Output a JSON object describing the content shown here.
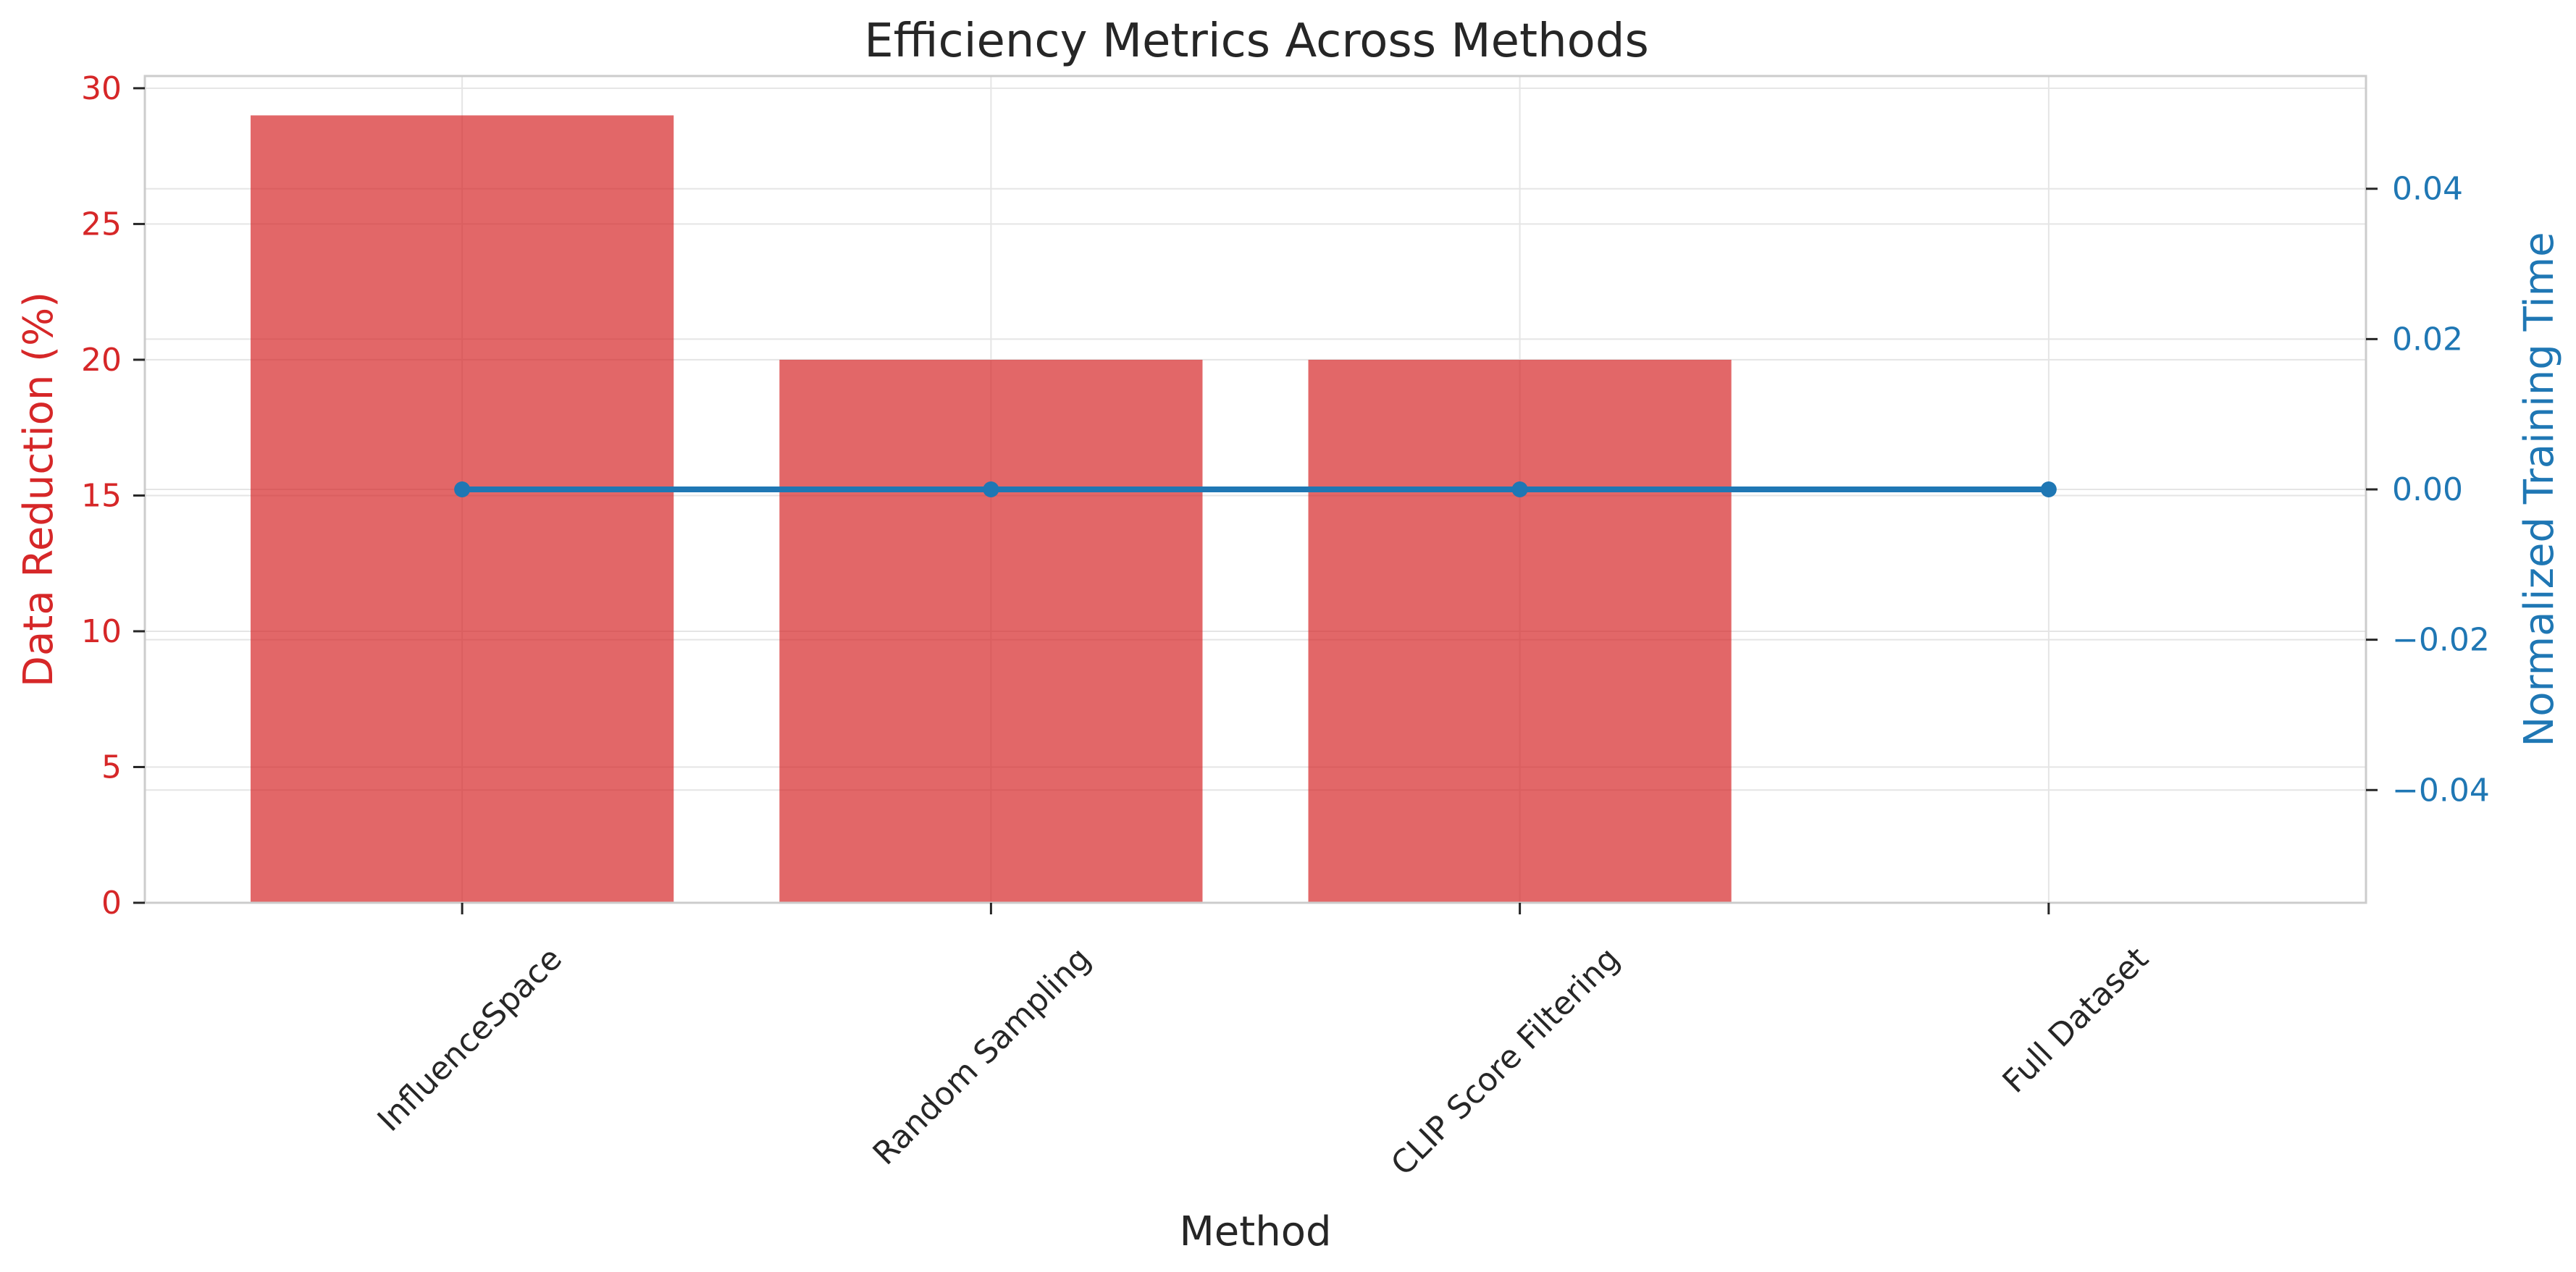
{
  "chart_data": {
    "type": "bar",
    "title": "Efficiency Metrics Across Methods",
    "xlabel": "Method",
    "ylabel": "Data Reduction (%)",
    "y2label": "Normalized Training Time",
    "categories": [
      "InfluenceSpace",
      "Random Sampling",
      "CLIP Score Filtering",
      "Full Dataset"
    ],
    "series": [
      {
        "type": "bar",
        "axis": "left",
        "values": [
          29,
          20,
          20,
          0
        ]
      },
      {
        "type": "line",
        "axis": "right",
        "values": [
          0.0,
          0.0,
          0.0,
          0.0
        ]
      }
    ],
    "ylim": [
      0,
      30.45
    ],
    "y2lim": [
      -0.055,
      0.055
    ],
    "yticks": [
      "0",
      "5",
      "10",
      "15",
      "20",
      "25",
      "30"
    ],
    "y2ticks": [
      "−0.04",
      "−0.02",
      "0.00",
      "0.02",
      "0.04"
    ],
    "grid": true,
    "colors": {
      "bar": "#d62728",
      "line": "#1f77b4",
      "grid": "#e5e5e5",
      "spine": "#cccccc"
    }
  }
}
